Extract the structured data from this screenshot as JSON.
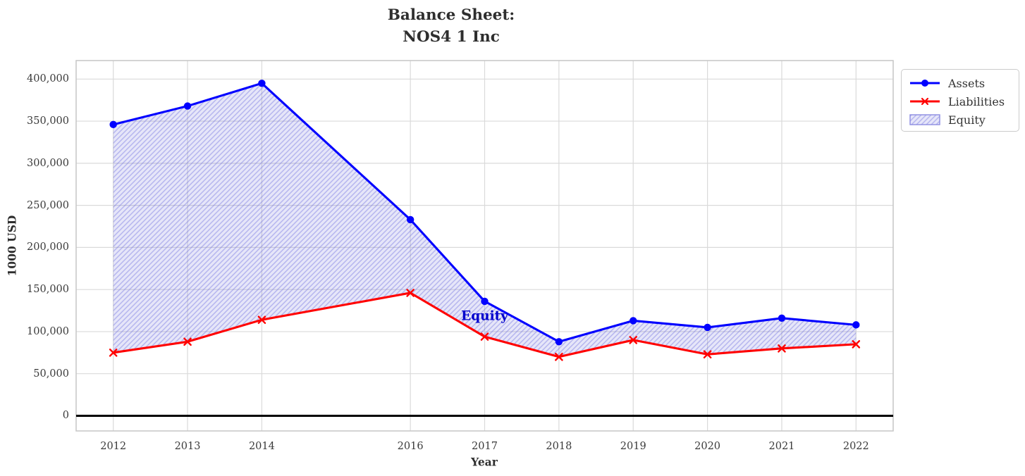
{
  "chart": {
    "title_line1": "Balance Sheet:",
    "title_line2": "NOS4 1 Inc",
    "xlabel": "Year",
    "ylabel": "1000 USD",
    "annotation": "Equity"
  },
  "legend": {
    "assets": "Assets",
    "liabilities": "Liabilities",
    "equity": "Equity"
  },
  "chart_data": {
    "type": "line",
    "title": "Balance Sheet:\nNOS4 1 Inc",
    "xlabel": "Year",
    "ylabel": "1000 USD",
    "x": [
      2012,
      2013,
      2014,
      2016,
      2017,
      2018,
      2019,
      2020,
      2021,
      2022
    ],
    "series": [
      {
        "name": "Assets",
        "marker": "circle",
        "color": "#0000ff",
        "values": [
          346000,
          368000,
          395000,
          233000,
          136000,
          88000,
          113000,
          105000,
          116000,
          108000
        ]
      },
      {
        "name": "Liabilities",
        "marker": "x",
        "color": "#ff0000",
        "values": [
          75000,
          88000,
          114000,
          146000,
          94000,
          70000,
          90000,
          73000,
          80000,
          85000
        ]
      }
    ],
    "fill_between": {
      "name": "Equity",
      "between": [
        "Assets",
        "Liabilities"
      ],
      "fill_color": "#6464dc",
      "fill_opacity": 0.16,
      "hatch": "/",
      "hatch_color": "#6464dc",
      "hatch_opacity": 0.38
    },
    "annotation": {
      "text": "Equity",
      "x": 2017,
      "y": 118000,
      "color": "#0000cd"
    },
    "x_tick_labels": [
      "2012",
      "2013",
      "2014",
      "2016",
      "2017",
      "2018",
      "2019",
      "2020",
      "2021",
      "2022"
    ],
    "y_tick_labels": [
      "0",
      "50,000",
      "100,000",
      "150,000",
      "200,000",
      "250,000",
      "300,000",
      "350,000",
      "400,000"
    ],
    "y_tick_values": [
      0,
      50000,
      100000,
      150000,
      200000,
      250000,
      300000,
      350000,
      400000
    ],
    "xlim": [
      2011.5,
      2022.5
    ],
    "ylim": [
      -18000,
      422000
    ],
    "grid": true,
    "grid_color": "#dadada",
    "spine_color": "#c6c6c6",
    "zero_line": true,
    "zero_line_color": "#000000",
    "legend_position": "upper-right-outside",
    "legend_entries": [
      "Assets",
      "Liabilities",
      "Equity"
    ]
  }
}
